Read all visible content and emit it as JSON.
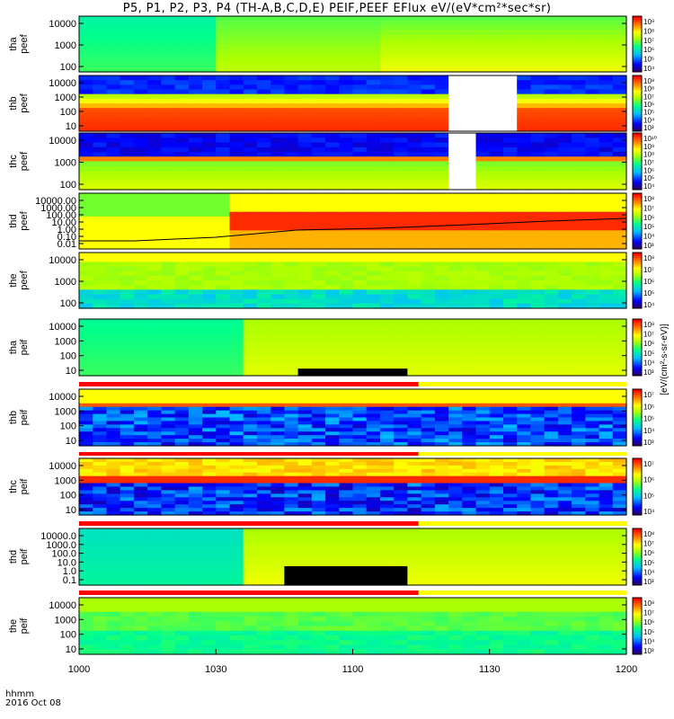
{
  "title": "P5, P1, P2, P3, P4 (TH-A,B,C,D,E) PEIF,PEEF EFlux eV/(eV*cm²*sec*sr)",
  "footer": {
    "time_label": "hhmm",
    "date_label": "2016 Oct 08"
  },
  "x_ticks": [
    "1000",
    "1030",
    "1100",
    "1130",
    "1200"
  ],
  "colorbar_title": "[eV/(cm²-s-sr-eV)]",
  "colors": {
    "spectrogram_colormap": [
      "#2b006b",
      "#0000ff",
      "#00c8ff",
      "#00ff80",
      "#b0ff00",
      "#ffff00",
      "#ff8000",
      "#ff0000"
    ],
    "frame": "#000000",
    "fill_band_red": "#ff0000",
    "fill_band_yellow": "#ffff00"
  },
  "chart_data": [
    {
      "type": "heatmap",
      "panel": "tha peef",
      "ylabel": "tha\npeef",
      "y_ticks": [
        "10000",
        "1000",
        "100"
      ],
      "y_scale": "log",
      "colorbar_ticks": [
        "10⁹",
        "10⁸",
        "10⁷",
        "10⁶",
        "10⁵",
        "10⁴"
      ],
      "x_range": [
        "10:00",
        "12:00"
      ]
    },
    {
      "type": "heatmap",
      "panel": "thb peef",
      "ylabel": "thb\npeef",
      "y_ticks": [
        "10000",
        "1000",
        "100",
        "10"
      ],
      "y_scale": "log",
      "colorbar_ticks": [
        "10⁹",
        "10⁸",
        "10⁷",
        "10⁶",
        "10⁵",
        "10⁴",
        "10³"
      ],
      "data_gap": [
        "11:21",
        "11:37"
      ]
    },
    {
      "type": "heatmap",
      "panel": "thc peef",
      "ylabel": "thc\npeef",
      "y_ticks": [
        "10000",
        "1000",
        "100"
      ],
      "y_scale": "log",
      "colorbar_ticks": [
        "10¹⁰",
        "10⁹",
        "10⁸",
        "10⁷",
        "10⁶",
        "10⁵",
        "10⁴"
      ],
      "data_gap": [
        "11:21",
        "11:28"
      ]
    },
    {
      "type": "heatmap",
      "panel": "thd peef",
      "ylabel": "thd\npeef",
      "y_ticks": [
        "10000.00",
        "1000.00",
        "100.00",
        "10.00",
        "1.00",
        "0.10",
        "0.01"
      ],
      "y_scale": "log",
      "colorbar_ticks": [
        "10⁸",
        "10⁷",
        "10⁶",
        "10⁵",
        "10⁴",
        "10³"
      ]
    },
    {
      "type": "heatmap",
      "panel": "the peef",
      "ylabel": "the\npeef",
      "y_ticks": [
        "10000",
        "1000",
        "100"
      ],
      "y_scale": "log",
      "colorbar_ticks": [
        "10⁸",
        "10⁷",
        "10⁶",
        "10⁵",
        "10⁴"
      ]
    },
    {
      "type": "heatmap",
      "panel": "tha peif",
      "ylabel": "tha\npeif",
      "y_ticks": [
        "10000",
        "1000",
        "100",
        "10"
      ],
      "y_scale": "log",
      "colorbar_ticks": [
        "10⁸",
        "10⁷",
        "10⁶",
        "10⁵",
        "10⁴",
        "10³"
      ]
    },
    {
      "type": "heatmap",
      "panel": "thb peif",
      "ylabel": "thb\npeif",
      "y_ticks": [
        "10000",
        "1000",
        "100",
        "10"
      ],
      "y_scale": "log",
      "colorbar_ticks": [
        "10⁷",
        "10⁶",
        "10⁵",
        "10⁴",
        "10³"
      ]
    },
    {
      "type": "heatmap",
      "panel": "thc peif",
      "ylabel": "thc\npeif",
      "y_ticks": [
        "10000",
        "1000",
        "100",
        "10"
      ],
      "y_scale": "log",
      "colorbar_ticks": [
        "10⁷",
        "10⁶",
        "10⁵",
        "10⁴"
      ]
    },
    {
      "type": "heatmap",
      "panel": "thd peif",
      "ylabel": "thd\npeif",
      "y_ticks": [
        "10000.0",
        "1000.0",
        "100.0",
        "10.0",
        "1.0",
        "0.1"
      ],
      "y_scale": "log",
      "colorbar_ticks": [
        "10⁸",
        "10⁷",
        "10⁶",
        "10⁵",
        "10⁴",
        "10³"
      ]
    },
    {
      "type": "heatmap",
      "panel": "the peif",
      "ylabel": "the\npeif",
      "y_ticks": [
        "10000",
        "1000",
        "100",
        "10"
      ],
      "y_scale": "log",
      "colorbar_ticks": [
        "10⁸",
        "10⁷",
        "10⁶",
        "10⁵",
        "10⁴",
        "10³"
      ]
    }
  ]
}
